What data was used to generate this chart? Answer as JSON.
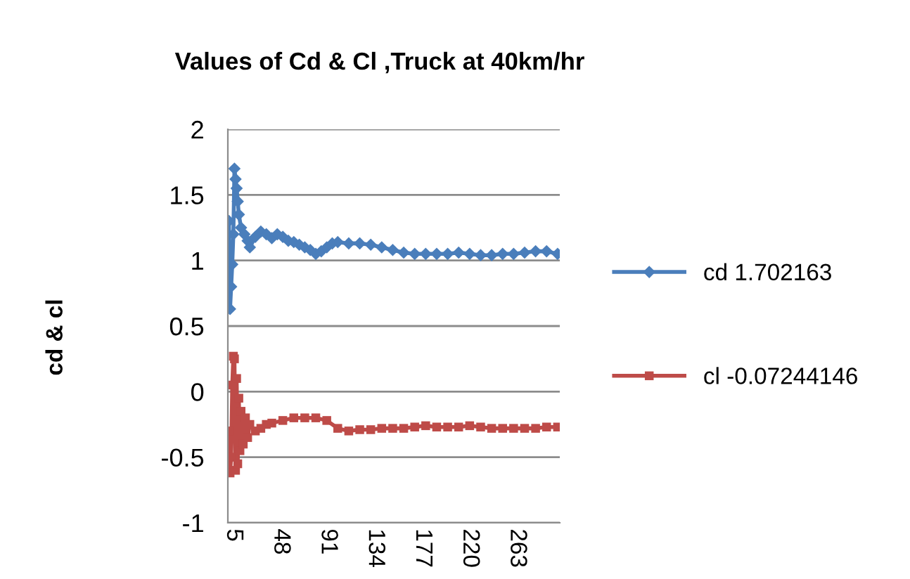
{
  "chart_data": {
    "type": "line",
    "title": "Values of Cd & Cl ,Truck at 40km/hr",
    "ylabel": "cd & cl",
    "xlim": [
      0,
      302
    ],
    "xticks": [
      5,
      48,
      91,
      134,
      177,
      220,
      263
    ],
    "ylim": [
      -1,
      2
    ],
    "yticks": [
      -1,
      -0.5,
      0,
      0.5,
      1,
      1.5,
      2
    ],
    "grid": "y",
    "legend": "right",
    "series": [
      {
        "name": "cd 1.702163",
        "color": "#4a7ebb",
        "marker": "diamond",
        "x": [
          1,
          2,
          3,
          4,
          5,
          6,
          7,
          8,
          9,
          10,
          12,
          15,
          18,
          20,
          25,
          30,
          35,
          40,
          45,
          50,
          55,
          60,
          65,
          70,
          75,
          80,
          85,
          90,
          95,
          100,
          110,
          120,
          130,
          140,
          150,
          160,
          170,
          180,
          190,
          200,
          210,
          220,
          230,
          240,
          250,
          260,
          270,
          280,
          290,
          300
        ],
        "values": [
          1.3,
          0.63,
          0.8,
          0.97,
          1.2,
          1.7,
          1.62,
          1.55,
          1.45,
          1.35,
          1.25,
          1.2,
          1.15,
          1.1,
          1.18,
          1.22,
          1.2,
          1.17,
          1.2,
          1.18,
          1.15,
          1.14,
          1.12,
          1.1,
          1.08,
          1.05,
          1.07,
          1.1,
          1.13,
          1.14,
          1.13,
          1.13,
          1.12,
          1.1,
          1.08,
          1.06,
          1.05,
          1.05,
          1.05,
          1.05,
          1.06,
          1.05,
          1.04,
          1.04,
          1.05,
          1.05,
          1.06,
          1.07,
          1.07,
          1.05
        ]
      },
      {
        "name": "cl -0.07244146",
        "color": "#be4b48",
        "marker": "square",
        "x": [
          1,
          2,
          3,
          4,
          5,
          6,
          7,
          8,
          9,
          10,
          11,
          12,
          14,
          16,
          18,
          20,
          25,
          30,
          35,
          40,
          50,
          60,
          70,
          80,
          90,
          100,
          110,
          120,
          130,
          140,
          150,
          160,
          170,
          180,
          190,
          200,
          210,
          220,
          230,
          240,
          250,
          260,
          270,
          280,
          290,
          300
        ],
        "values": [
          -0.3,
          -0.62,
          -0.5,
          0.05,
          0.27,
          0.25,
          -0.6,
          0.1,
          -0.55,
          -0.05,
          -0.45,
          -0.15,
          -0.4,
          -0.2,
          -0.35,
          -0.25,
          -0.3,
          -0.28,
          -0.25,
          -0.24,
          -0.22,
          -0.2,
          -0.2,
          -0.2,
          -0.22,
          -0.28,
          -0.3,
          -0.29,
          -0.29,
          -0.28,
          -0.28,
          -0.28,
          -0.27,
          -0.26,
          -0.27,
          -0.27,
          -0.27,
          -0.26,
          -0.27,
          -0.28,
          -0.28,
          -0.28,
          -0.28,
          -0.28,
          -0.27,
          -0.27
        ]
      }
    ]
  }
}
